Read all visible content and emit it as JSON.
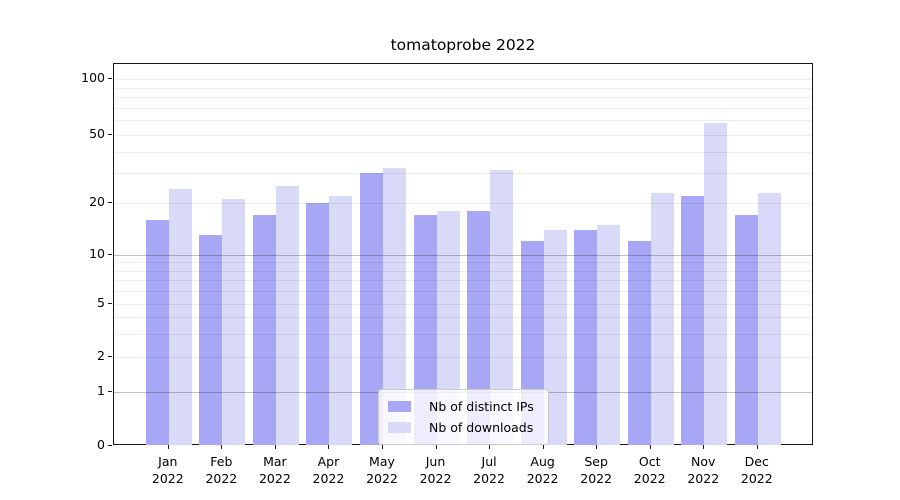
{
  "title": "tomatoprobe 2022",
  "chart_data": {
    "type": "bar",
    "title": "tomatoprobe 2022",
    "categories": [
      "Jan 2022",
      "Feb 2022",
      "Mar 2022",
      "Apr 2022",
      "May 2022",
      "Jun 2022",
      "Jul 2022",
      "Aug 2022",
      "Sep 2022",
      "Oct 2022",
      "Nov 2022",
      "Dec 2022"
    ],
    "series": [
      {
        "name": "Nb of distinct IPs",
        "color": "#a7a7f5",
        "values": [
          16,
          13,
          17,
          20,
          30,
          17,
          18,
          12,
          14,
          12,
          22,
          17
        ]
      },
      {
        "name": "Nb of downloads",
        "color": "#d9d9f8",
        "values": [
          24,
          21,
          25,
          22,
          32,
          18,
          31,
          14,
          15,
          23,
          58,
          23
        ]
      }
    ],
    "xlabel": "",
    "ylabel": "",
    "yscale": "symlog",
    "ylim": [
      0,
      120
    ],
    "yticks": [
      0,
      1,
      2,
      5,
      10,
      20,
      50,
      100
    ],
    "ytick_labels": [
      "0",
      "1",
      "2",
      "5",
      "10",
      "20",
      "50",
      "100"
    ],
    "minor_gridlines": [
      3,
      4,
      6,
      7,
      8,
      9,
      30,
      40,
      60,
      70,
      80,
      90
    ],
    "grid": true,
    "legend_position": "lower center"
  },
  "colors": {
    "bar_dark": "#a7a7f5",
    "bar_light": "#d9d9f8",
    "grid_major": "#c2c2c2",
    "grid_minor": "#ececec",
    "spine": "#1a1a1a"
  }
}
